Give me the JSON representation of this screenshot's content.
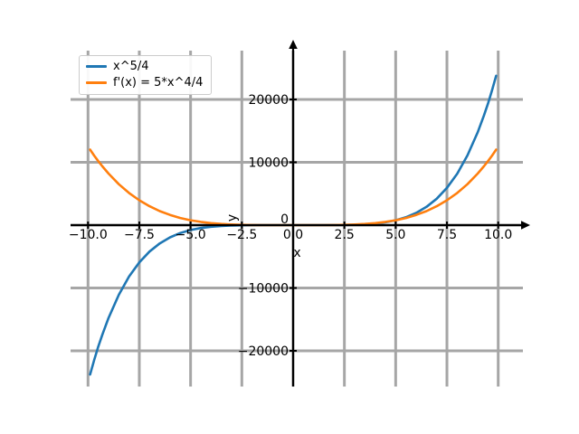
{
  "figure": {
    "background": "#ffffff"
  },
  "legend": {
    "items": [
      {
        "label": "x^5/4",
        "color": "#1f77b4"
      },
      {
        "label": "f'(x) = 5*x^4/4",
        "color": "#ff7f0e"
      }
    ]
  },
  "chart_data": {
    "type": "line",
    "title": "",
    "xlabel": "x",
    "ylabel": "y",
    "xlim": [
      -10.9,
      11.2
    ],
    "ylim": [
      -25700,
      27800
    ],
    "grid": true,
    "legend_position": "upper left",
    "colors": {
      "grid": "#a6a6a6",
      "axis": "#000000",
      "tick_text": "#000000"
    },
    "x_ticks": {
      "values": [
        -10,
        -7.5,
        -5,
        -2.5,
        0,
        2.5,
        5,
        7.5,
        10
      ],
      "labels": [
        "−10.0",
        "−7.5",
        "−5.0",
        "−2.5",
        "0.0",
        "2.5",
        "5.0",
        "7.5",
        "10.0"
      ]
    },
    "y_ticks": {
      "values": [
        -20000,
        -10000,
        0,
        10000,
        20000
      ],
      "labels": [
        "−20000",
        "−10000",
        "0",
        "10000",
        "20000"
      ]
    },
    "x": [
      -9.9,
      -9.7,
      -9.5,
      -9.3,
      -9,
      -8.5,
      -8,
      -7.5,
      -7,
      -6.5,
      -6,
      -5.5,
      -5,
      -4.5,
      -4,
      -3.5,
      -3,
      -2.5,
      -2,
      -1.5,
      -1,
      -0.5,
      0,
      0.5,
      1,
      1.5,
      2,
      2.5,
      3,
      3.5,
      4,
      4.5,
      5,
      5.5,
      6,
      6.5,
      7,
      7.5,
      8,
      8.5,
      9,
      9.3,
      9.5,
      9.7,
      9.9
    ],
    "series": [
      {
        "name": "x^5/4",
        "color": "#1f77b4",
        "values": [
          -23774.8,
          -21468.4,
          -19344.5,
          -17392.2,
          -14762.3,
          -11092.6,
          -8192,
          -5932.6,
          -4201.8,
          -2900.7,
          -1944,
          -1258.2,
          -781.3,
          -461.3,
          -256,
          -131.3,
          -60.8,
          -24.4,
          -8,
          -1.9,
          -0.25,
          -0.01,
          0,
          0.01,
          0.25,
          1.9,
          8,
          24.4,
          60.8,
          131.3,
          256,
          461.3,
          781.3,
          1258.2,
          1944,
          2900.7,
          4201.8,
          5932.6,
          8192,
          11092.6,
          14762.3,
          17392.2,
          19344.5,
          21468.4,
          23774.8
        ]
      },
      {
        "name": "f'(x) = 5*x^4/4",
        "color": "#ff7f0e",
        "values": [
          12007.5,
          11066.1,
          10181.3,
          9350.6,
          8201.3,
          6525.1,
          5120,
          3955.1,
          3001.3,
          2231.3,
          1620,
          1143.8,
          781.3,
          512.6,
          320,
          187.6,
          101.3,
          48.8,
          20,
          6.3,
          1.25,
          0.08,
          0,
          0.08,
          1.25,
          6.3,
          20,
          48.8,
          101.3,
          187.6,
          320,
          512.6,
          781.3,
          1143.8,
          1620,
          2231.3,
          3001.3,
          3955.1,
          5120,
          6525.1,
          8201.3,
          9350.6,
          10181.3,
          11066.1,
          12007.5
        ]
      }
    ]
  }
}
